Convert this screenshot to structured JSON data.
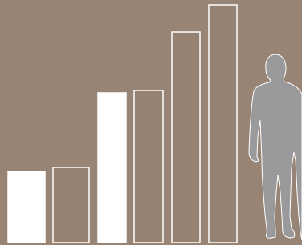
{
  "chart_data": {
    "type": "bar",
    "categories": [
      null,
      null,
      null,
      null,
      null,
      null
    ],
    "values": [
      89,
      94,
      187,
      190,
      263,
      297
    ],
    "bar_fills": [
      "#ffffff",
      "#968272",
      "#ffffff",
      "#968272",
      "#968272",
      "#968272"
    ],
    "bar_stroke": "#ffffff",
    "ylim": [
      0,
      300
    ]
  }
}
